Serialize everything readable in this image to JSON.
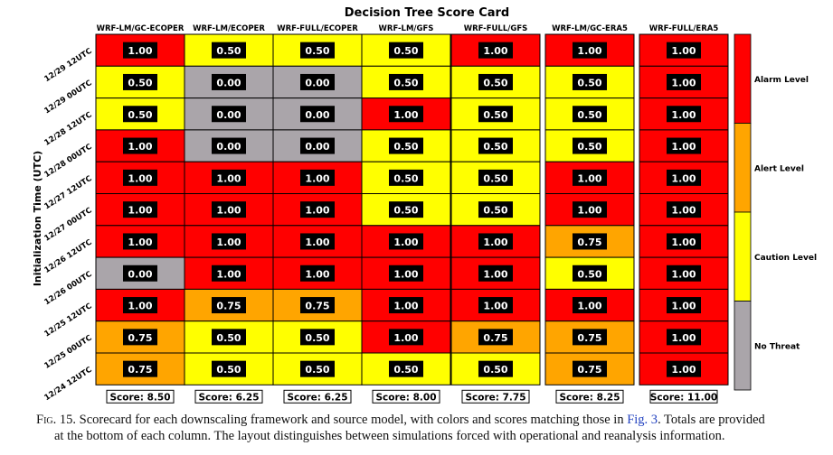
{
  "chart_data": {
    "type": "heatmap",
    "title": "Decision Tree Score Card",
    "ylabel": "Initialization Time (UTC)",
    "columns": [
      "WRF-LM/GC-ECOPER",
      "WRF-LM/ECOPER",
      "WRF-FULL/ECOPER",
      "WRF-LM/GFS",
      "WRF-FULL/GFS",
      "WRF-LM/GC-ERA5",
      "WRF-FULL/ERA5"
    ],
    "column_groups": [
      [
        0,
        1,
        2,
        3,
        4
      ],
      [
        5,
        6
      ]
    ],
    "rows": [
      "12/29 12UTC",
      "12/29 00UTC",
      "12/28 12UTC",
      "12/28 00UTC",
      "12/27 12UTC",
      "12/27 00UTC",
      "12/26 12UTC",
      "12/26 00UTC",
      "12/25 12UTC",
      "12/25 00UTC",
      "12/24 12UTC"
    ],
    "values": [
      [
        "1.00",
        "0.50",
        "0.50",
        "0.50",
        "1.00",
        "1.00",
        "1.00"
      ],
      [
        "0.50",
        "0.00",
        "0.00",
        "0.50",
        "0.50",
        "0.50",
        "1.00"
      ],
      [
        "0.50",
        "0.00",
        "0.00",
        "1.00",
        "0.50",
        "0.50",
        "1.00"
      ],
      [
        "1.00",
        "0.00",
        "0.00",
        "0.50",
        "0.50",
        "0.50",
        "1.00"
      ],
      [
        "1.00",
        "1.00",
        "1.00",
        "0.50",
        "0.50",
        "1.00",
        "1.00"
      ],
      [
        "1.00",
        "1.00",
        "1.00",
        "0.50",
        "0.50",
        "1.00",
        "1.00"
      ],
      [
        "1.00",
        "1.00",
        "1.00",
        "1.00",
        "1.00",
        "0.75",
        "1.00"
      ],
      [
        "0.00",
        "1.00",
        "1.00",
        "1.00",
        "1.00",
        "0.50",
        "1.00"
      ],
      [
        "1.00",
        "0.75",
        "0.75",
        "1.00",
        "1.00",
        "1.00",
        "1.00"
      ],
      [
        "0.75",
        "0.50",
        "0.50",
        "1.00",
        "0.75",
        "0.75",
        "1.00"
      ],
      [
        "0.75",
        "0.50",
        "0.50",
        "0.50",
        "0.50",
        "0.75",
        "1.00"
      ]
    ],
    "scores": [
      "Score: 8.50",
      "Score: 6.25",
      "Score: 6.25",
      "Score: 8.00",
      "Score: 7.75",
      "Score: 8.25",
      "Score: 11.00"
    ],
    "legend": [
      {
        "label": "Alarm Level",
        "value": "1.00",
        "color": "#ff0000"
      },
      {
        "label": "Alert Level",
        "value": "0.75",
        "color": "#ffa500"
      },
      {
        "label": "Caution Level",
        "value": "0.50",
        "color": "#ffff00"
      },
      {
        "label": "No Threat",
        "value": "0.00",
        "color": "#aaa5aa"
      }
    ],
    "legend_placement": "right"
  },
  "caption": {
    "lead": "Fig. 15.",
    "text1": " Scorecard for each downscaling framework and source model, with colors and scores matching those in ",
    "ref": "Fig. 3",
    "text2": ". Totals are provided",
    "line2": "at the bottom of each column. The layout distinguishes between simulations forced with operational and reanalysis information."
  }
}
